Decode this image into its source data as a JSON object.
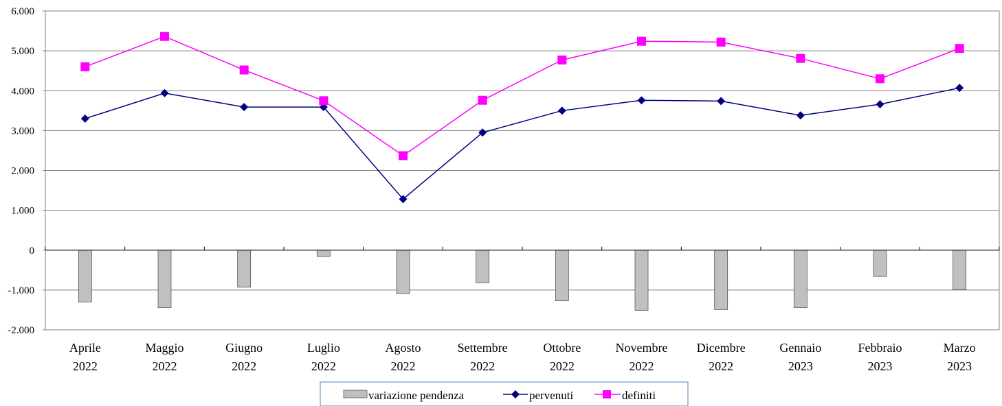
{
  "chart_data": {
    "type": "bar+line",
    "categories": [
      [
        "Aprile",
        "2022"
      ],
      [
        "Maggio",
        "2022"
      ],
      [
        "Giugno",
        "2022"
      ],
      [
        "Luglio",
        "2022"
      ],
      [
        "Agosto",
        "2022"
      ],
      [
        "Settembre",
        "2022"
      ],
      [
        "Ottobre",
        "2022"
      ],
      [
        "Novembre",
        "2022"
      ],
      [
        "Dicembre",
        "2022"
      ],
      [
        "Gennaio",
        "2023"
      ],
      [
        "Febbraio",
        "2023"
      ],
      [
        "Marzo",
        "2023"
      ]
    ],
    "yticks": [
      "6.000",
      "5.000",
      "4.000",
      "3.000",
      "2.000",
      "1.000",
      "0",
      "-1.000",
      "-2.000"
    ],
    "ylim": [
      -2000,
      6000
    ],
    "grid": true,
    "legend_position": "bottom",
    "series": [
      {
        "name": "variazione pendenza",
        "kind": "bar",
        "color": "#c0c0c0",
        "values": [
          -1300,
          -1440,
          -930,
          -160,
          -1090,
          -820,
          -1270,
          -1510,
          -1490,
          -1440,
          -660,
          -990
        ]
      },
      {
        "name": "pervenuti",
        "kind": "line",
        "marker": "diamond",
        "color": "#000080",
        "values": [
          3300,
          3940,
          3590,
          3590,
          1280,
          2950,
          3500,
          3760,
          3740,
          3380,
          3660,
          4070
        ]
      },
      {
        "name": "definiti",
        "kind": "line",
        "marker": "square",
        "color": "#ff00ff",
        "values": [
          4600,
          5360,
          4520,
          3750,
          2370,
          3760,
          4770,
          5240,
          5220,
          4810,
          4300,
          5060
        ]
      }
    ]
  }
}
